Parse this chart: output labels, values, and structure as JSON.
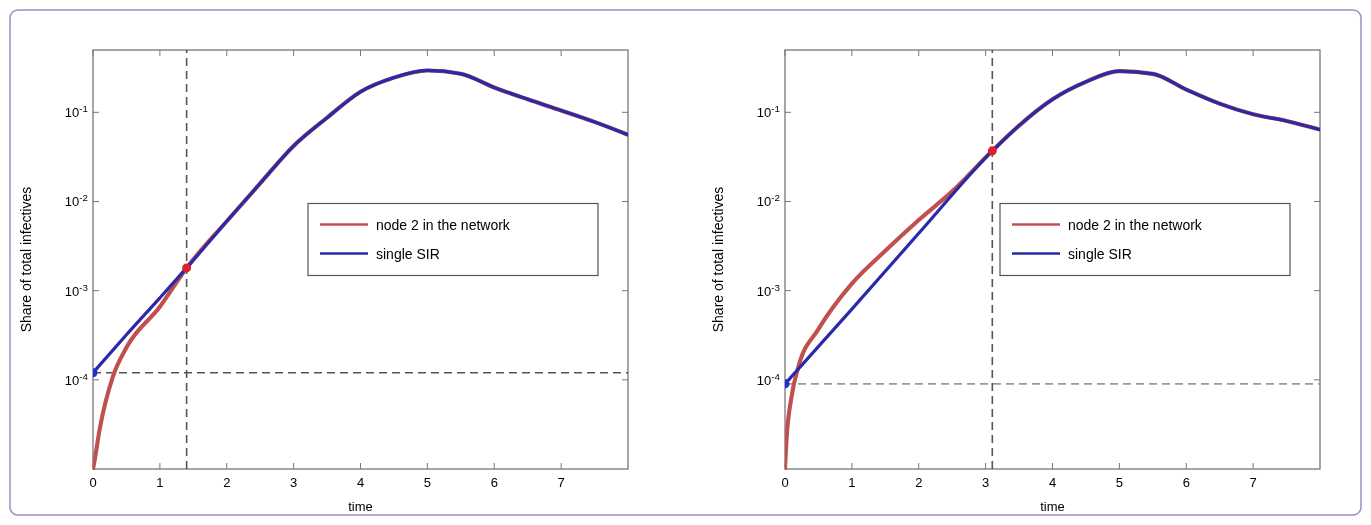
{
  "chart_data": [
    {
      "type": "line",
      "xlabel": "time",
      "ylabel": "Share of total infectives",
      "log": "y",
      "xlim": [
        0,
        8
      ],
      "ylim": [
        1e-05,
        0.5
      ],
      "xticks": [
        0,
        1,
        2,
        3,
        4,
        5,
        6,
        7
      ],
      "yticks": [
        {
          "value": 0.0001,
          "label": "10$^{-4}$"
        },
        {
          "value": 0.001,
          "label": "10$^{-3}$"
        },
        {
          "value": 0.01,
          "label": "10$^{-2}$"
        },
        {
          "value": 0.1,
          "label": "10$^{-1}$"
        }
      ],
      "grid": false,
      "legend": "right",
      "line_style": "solid",
      "marker": "none",
      "series": [
        {
          "name": "node 2 in the network",
          "color": "#c0504d",
          "x": [
            0,
            0.02,
            0.1,
            0.3,
            0.5,
            1,
            1.4,
            2,
            2.5,
            3,
            3.5,
            4,
            4.5,
            5,
            5.5,
            6,
            6.5,
            7,
            7.5,
            8
          ],
          "values": [
            1e-05,
            1.2e-05,
            2.8e-05,
            0.00011,
            0.00023,
            0.00066,
            0.0018,
            0.006,
            0.016,
            0.042,
            0.087,
            0.17,
            0.245,
            0.295,
            0.27,
            0.19,
            0.14,
            0.105,
            0.078,
            0.056
          ]
        },
        {
          "name": "single SIR",
          "color": "#2a2aa8",
          "x": [
            0,
            0.5,
            1,
            1.4,
            2,
            2.5,
            3,
            3.5,
            4,
            4.5,
            5,
            5.5,
            6,
            6.5,
            7,
            7.5,
            8
          ],
          "values": [
            0.00012,
            0.00032,
            0.00083,
            0.0018,
            0.006,
            0.016,
            0.042,
            0.087,
            0.17,
            0.245,
            0.295,
            0.27,
            0.19,
            0.14,
            0.105,
            0.078,
            0.056
          ]
        },
        {
          "type": "scatter",
          "marker": "circle",
          "color": "#1f2fd0",
          "x": [
            0
          ],
          "values": [
            0.00012
          ]
        },
        {
          "type": "scatter",
          "marker": "circle",
          "color": "#e02030",
          "x": [
            1.4
          ],
          "values": [
            0.0018
          ]
        }
      ],
      "ref_lines": [
        {
          "axis": "y",
          "value": 0.00012,
          "color": "#555555",
          "line_style": "dashed"
        },
        {
          "axis": "x",
          "value": 1.4,
          "color": "#555555",
          "line_style": "dashed"
        }
      ]
    },
    {
      "type": "line",
      "xlabel": "time",
      "ylabel": "Share of total infectives",
      "log": "y",
      "xlim": [
        0,
        8
      ],
      "ylim": [
        1e-05,
        0.5
      ],
      "xticks": [
        0,
        1,
        2,
        3,
        4,
        5,
        6,
        7
      ],
      "yticks": [
        {
          "value": 0.0001,
          "label": "10$^{-4}$"
        },
        {
          "value": 0.001,
          "label": "10$^{-3}$"
        },
        {
          "value": 0.01,
          "label": "10$^{-2}$"
        },
        {
          "value": 0.1,
          "label": "10$^{-1}$"
        }
      ],
      "grid": false,
      "legend": "right",
      "line_style": "solid",
      "marker": "none",
      "series": [
        {
          "name": "node 2 in the network",
          "color": "#c0504d",
          "x": [
            0,
            0.02,
            0.1,
            0.2,
            0.5,
            1,
            1.5,
            2,
            2.5,
            3.1,
            3.5,
            4,
            4.5,
            5,
            5.5,
            6,
            6.5,
            7,
            7.5,
            8
          ],
          "values": [
            1e-05,
            2e-05,
            6.6e-05,
            0.00014,
            0.00037,
            0.0012,
            0.0028,
            0.0062,
            0.013,
            0.037,
            0.071,
            0.14,
            0.22,
            0.29,
            0.27,
            0.18,
            0.125,
            0.095,
            0.08,
            0.064
          ]
        },
        {
          "name": "single SIR",
          "color": "#2a2aa8",
          "x": [
            0,
            1,
            2,
            3.1,
            3.5,
            4,
            4.5,
            5,
            5.5,
            6,
            6.5,
            7,
            7.5,
            8
          ],
          "values": [
            9e-05,
            0.00062,
            0.0044,
            0.037,
            0.071,
            0.14,
            0.22,
            0.29,
            0.27,
            0.18,
            0.125,
            0.095,
            0.08,
            0.064
          ]
        },
        {
          "type": "scatter",
          "marker": "circle",
          "color": "#1f2fd0",
          "x": [
            0
          ],
          "values": [
            9e-05
          ]
        },
        {
          "type": "scatter",
          "marker": "circle",
          "color": "#e02030",
          "x": [
            3.1
          ],
          "values": [
            0.037
          ]
        }
      ],
      "ref_lines": [
        {
          "axis": "y",
          "value": 9e-05,
          "color": "#999999",
          "line_style": "dashed"
        },
        {
          "axis": "x",
          "value": 3.1,
          "color": "#555555",
          "line_style": "dashed"
        }
      ]
    }
  ]
}
